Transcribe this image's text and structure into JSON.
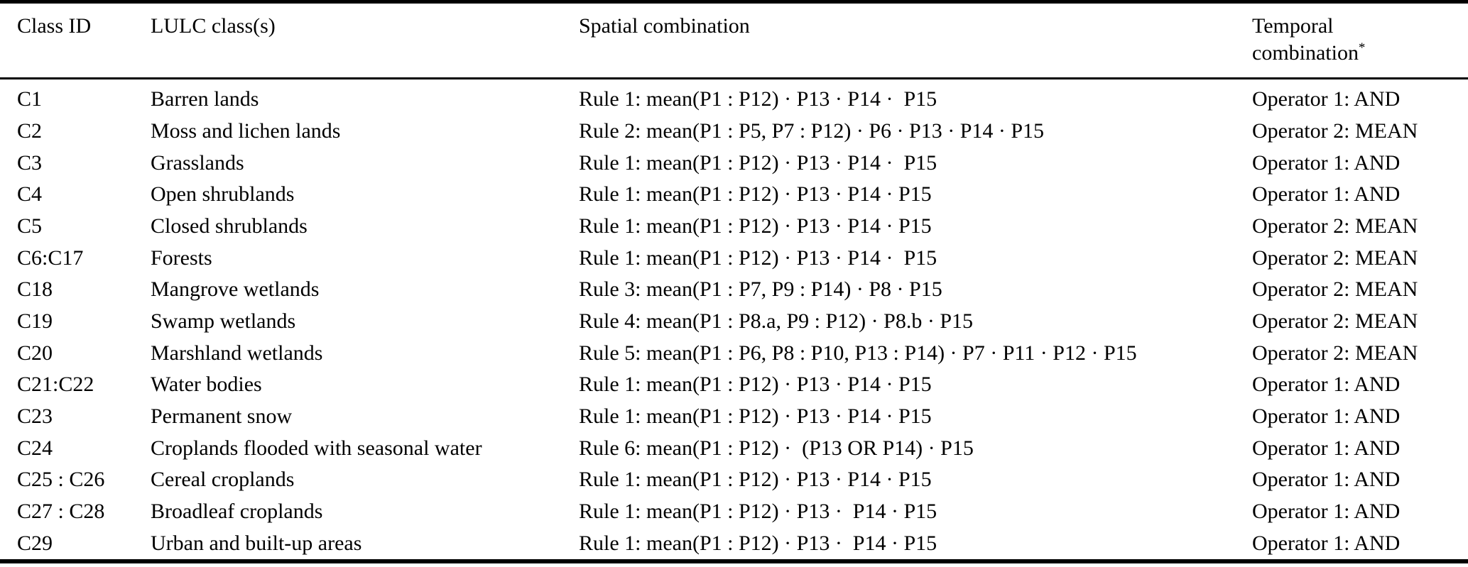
{
  "colors": {
    "text": "#000000",
    "background": "#ffffff",
    "rule": "#000000"
  },
  "table": {
    "headers": {
      "class_id": "Class ID",
      "lulc": "LULC class(s)",
      "spatial": "Spatial combination",
      "temporal_line1": "Temporal",
      "temporal_line2": "combination",
      "temporal_footnote_marker": "*"
    },
    "rows": [
      {
        "class_id": "C1",
        "lulc": "Barren lands",
        "spatial": "Rule 1: mean(P1 : P12) · P13 · P14 ·  P15",
        "temporal": "Operator 1: AND"
      },
      {
        "class_id": "C2",
        "lulc": "Moss and lichen lands",
        "spatial": "Rule 2: mean(P1 : P5, P7 : P12) · P6 · P13 · P14 · P15",
        "temporal": "Operator 2: MEAN"
      },
      {
        "class_id": "C3",
        "lulc": "Grasslands",
        "spatial": "Rule 1: mean(P1 : P12) · P13 · P14 ·  P15",
        "temporal": "Operator 1: AND"
      },
      {
        "class_id": "C4",
        "lulc": "Open shrublands",
        "spatial": "Rule 1: mean(P1 : P12) · P13 · P14 · P15",
        "temporal": "Operator 1: AND"
      },
      {
        "class_id": "C5",
        "lulc": "Closed shrublands",
        "spatial": "Rule 1: mean(P1 : P12) · P13 · P14 · P15",
        "temporal": "Operator 2: MEAN"
      },
      {
        "class_id": "C6:C17",
        "lulc": "Forests",
        "spatial": "Rule 1: mean(P1 : P12) · P13 · P14 ·  P15",
        "temporal": "Operator 2: MEAN"
      },
      {
        "class_id": "C18",
        "lulc": "Mangrove wetlands",
        "spatial": "Rule 3: mean(P1 : P7, P9 : P14) · P8 · P15",
        "temporal": "Operator 2: MEAN"
      },
      {
        "class_id": "C19",
        "lulc": "Swamp wetlands",
        "spatial": "Rule 4: mean(P1 : P8.a, P9 : P12) · P8.b · P15",
        "temporal": "Operator 2: MEAN"
      },
      {
        "class_id": "C20",
        "lulc": "Marshland wetlands",
        "spatial": "Rule 5: mean(P1 : P6, P8 : P10, P13 : P14) · P7 · P11 · P12 · P15",
        "temporal": "Operator 2: MEAN"
      },
      {
        "class_id": "C21:C22",
        "lulc": "Water bodies",
        "spatial": "Rule 1: mean(P1 : P12) · P13 · P14 · P15",
        "temporal": "Operator 1: AND"
      },
      {
        "class_id": "C23",
        "lulc": "Permanent snow",
        "spatial": "Rule 1: mean(P1 : P12) · P13 · P14 · P15",
        "temporal": "Operator 1: AND"
      },
      {
        "class_id": "C24",
        "lulc": "Croplands flooded with seasonal water",
        "spatial": "Rule 6: mean(P1 : P12) ·  (P13 OR P14) · P15",
        "temporal": "Operator 1: AND"
      },
      {
        "class_id": "C25 : C26",
        "lulc": "Cereal croplands",
        "spatial": "Rule 1: mean(P1 : P12) · P13 · P14 · P15",
        "temporal": "Operator 1: AND"
      },
      {
        "class_id": "C27 : C28",
        "lulc": "Broadleaf croplands",
        "spatial": "Rule 1: mean(P1 : P12) · P13 ·  P14 · P15",
        "temporal": "Operator 1: AND"
      },
      {
        "class_id": "C29",
        "lulc": "Urban and built-up areas",
        "spatial": "Rule 1: mean(P1 : P12) · P13 ·  P14 · P15",
        "temporal": "Operator 1: AND"
      }
    ]
  }
}
